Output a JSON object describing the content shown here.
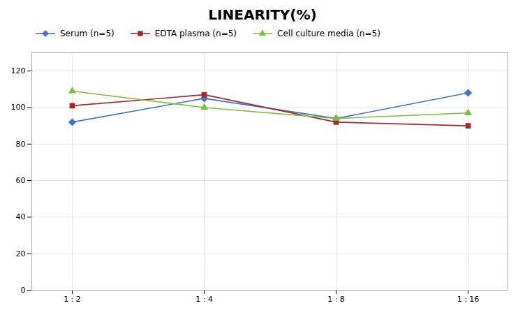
{
  "chart_data": {
    "type": "line",
    "title": "LINEARITY(%)",
    "categories": [
      "1 : 2",
      "1 : 4",
      "1 : 8",
      "1 : 16"
    ],
    "series": [
      {
        "name": "Serum (n=5)",
        "color": "#4472C4",
        "marker": "diamond",
        "values": [
          92,
          105,
          94,
          108
        ]
      },
      {
        "name": "EDTA plasma (n=5)",
        "color": "#A52A2A",
        "marker": "square",
        "values": [
          101,
          107,
          92,
          90
        ]
      },
      {
        "name": "Cell culture media (n=5)",
        "color": "#7CBF3F",
        "marker": "triangle",
        "values": [
          109,
          100,
          94,
          97
        ]
      }
    ],
    "ylim": [
      0,
      130
    ],
    "yticks": [
      0,
      20,
      40,
      60,
      80,
      100,
      120
    ],
    "grid": true,
    "legend": "top"
  }
}
